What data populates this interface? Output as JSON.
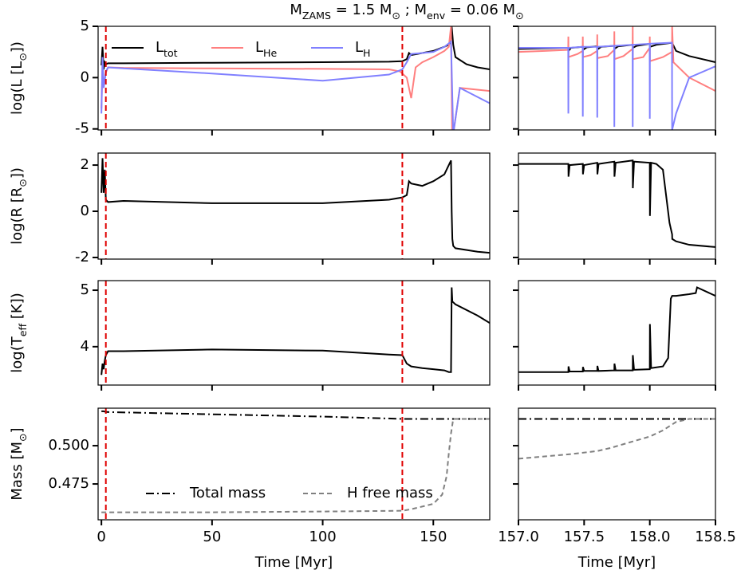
{
  "chart_data": [
    {
      "type": "line",
      "title": [
        "M",
        "ZAMS",
        " = 1.5 M",
        "⊙",
        " ; M",
        "env",
        " = 0.06 M",
        "⊙"
      ],
      "ylabel": [
        "log(L [L",
        "⊙",
        "])"
      ],
      "legend": "upper left",
      "xlim": [
        -1.5,
        175.5
      ],
      "ylim": [
        -5.1,
        5
      ],
      "xticks": [
        0,
        50,
        100,
        150
      ],
      "yticks": [
        -5,
        0,
        5
      ],
      "vlines": [
        2,
        136
      ],
      "vline_color": "#e00000",
      "series": [
        {
          "name": [
            "L",
            "tot"
          ],
          "color": "#000000",
          "linestyle": "solid",
          "x": [
            0,
            0.5,
            1,
            1.5,
            2,
            3,
            10,
            50,
            100,
            130,
            136,
            138,
            139,
            140,
            145,
            150,
            155,
            157,
            158,
            158.3,
            159,
            160,
            165,
            170,
            175.5
          ],
          "values": [
            1.2,
            3.0,
            0.8,
            1.5,
            1.3,
            1.4,
            1.4,
            1.45,
            1.5,
            1.55,
            1.6,
            1.8,
            2.4,
            2.2,
            2.4,
            2.6,
            3.0,
            3.2,
            3.6,
            5.0,
            3.2,
            2.0,
            1.3,
            1.0,
            0.8
          ]
        },
        {
          "name": [
            "L",
            "He"
          ],
          "color": "#ff7f7f",
          "linestyle": "solid",
          "x": [
            0,
            0.5,
            1,
            2,
            3,
            10,
            50,
            100,
            130,
            135,
            138,
            140,
            142,
            145,
            150,
            155,
            157,
            158,
            158.5,
            159,
            162,
            175.5
          ],
          "values": [
            -3,
            1.5,
            -1,
            0.5,
            1.0,
            0.95,
            0.9,
            0.85,
            0.8,
            0.6,
            0.0,
            -2.0,
            1.0,
            1.5,
            2.0,
            2.6,
            3.0,
            5.0,
            -5.5,
            -5.5,
            -1.0,
            -1.3
          ]
        },
        {
          "name": [
            "L",
            "H"
          ],
          "color": "#8080ff",
          "linestyle": "solid",
          "x": [
            0,
            0.5,
            1,
            2,
            3,
            10,
            50,
            100,
            130,
            136,
            138,
            140,
            145,
            150,
            155,
            158,
            159,
            162,
            175.5
          ],
          "values": [
            -3.5,
            2.0,
            -1,
            0.6,
            1.0,
            0.9,
            0.4,
            -0.3,
            0.3,
            0.8,
            1.5,
            2.3,
            2.4,
            2.5,
            3.0,
            3.5,
            -5.5,
            -1.0,
            -2.5
          ]
        }
      ]
    },
    {
      "type": "line",
      "xlim": [
        157,
        158.5
      ],
      "ylim": [
        -5.1,
        5
      ],
      "xticks": [
        157,
        157.5,
        158,
        158.5
      ],
      "yticks": [
        -5,
        0,
        5
      ],
      "series": [
        {
          "color": "#000000",
          "linestyle": "solid",
          "x": [
            157,
            157.38,
            157.381,
            157.4,
            157.49,
            157.491,
            157.52,
            157.6,
            157.601,
            157.63,
            157.73,
            157.731,
            157.76,
            157.87,
            157.871,
            157.9,
            158.0,
            158.001,
            158.05,
            158.17,
            158.2,
            158.3,
            158.5
          ],
          "values": [
            2.8,
            2.9,
            2.6,
            2.9,
            3.0,
            2.7,
            2.95,
            3.05,
            2.75,
            3.0,
            3.1,
            2.8,
            3.05,
            3.2,
            2.9,
            3.1,
            3.3,
            3.0,
            3.2,
            3.4,
            2.6,
            2.1,
            1.5
          ]
        },
        {
          "color": "#ff7f7f",
          "linestyle": "solid",
          "x": [
            157,
            157.2,
            157.379,
            157.38,
            157.381,
            157.45,
            157.489,
            157.49,
            157.491,
            157.55,
            157.599,
            157.6,
            157.601,
            157.68,
            157.729,
            157.73,
            157.731,
            157.8,
            157.869,
            157.87,
            157.871,
            157.95,
            157.999,
            158.0,
            158.001,
            158.1,
            158.169,
            158.17,
            158.18,
            158.3,
            158.5
          ],
          "values": [
            2.5,
            2.6,
            2.7,
            4.0,
            2.0,
            2.3,
            2.6,
            4.0,
            2.0,
            2.2,
            2.6,
            4.2,
            1.9,
            2.1,
            2.7,
            4.5,
            1.8,
            2.1,
            2.8,
            5.0,
            1.8,
            2.0,
            2.9,
            4.0,
            1.6,
            2.0,
            2.5,
            5.0,
            1.5,
            0.0,
            -1.3
          ]
        },
        {
          "color": "#8080ff",
          "linestyle": "solid",
          "x": [
            157,
            157.379,
            157.38,
            157.381,
            157.489,
            157.49,
            157.491,
            157.599,
            157.6,
            157.601,
            157.729,
            157.73,
            157.731,
            157.869,
            157.87,
            157.871,
            157.999,
            158.0,
            158.001,
            158.169,
            158.17,
            158.2,
            158.3,
            158.5
          ],
          "values": [
            2.9,
            2.9,
            -3.5,
            2.9,
            3.0,
            -3.8,
            3.0,
            3.0,
            -3.9,
            3.0,
            3.1,
            -4.8,
            3.1,
            3.2,
            -4.8,
            3.2,
            3.3,
            -4.0,
            3.3,
            3.4,
            -5.1,
            -3.5,
            0.0,
            1.1
          ]
        }
      ]
    },
    {
      "type": "line",
      "ylabel": [
        "log(R [R",
        "⊙",
        "])"
      ],
      "xlim": [
        -1.5,
        175.5
      ],
      "ylim": [
        -2.07,
        2.52
      ],
      "xticks": [
        0,
        50,
        100,
        150
      ],
      "yticks": [
        -2,
        0,
        2
      ],
      "vlines": [
        2,
        136
      ],
      "vline_color": "#e00000",
      "series": [
        {
          "color": "#000000",
          "linestyle": "solid",
          "x": [
            0,
            0.5,
            1,
            1.5,
            2,
            3,
            10,
            50,
            100,
            130,
            136,
            138,
            139,
            140,
            145,
            150,
            155,
            157,
            158,
            158.3,
            158.6,
            159,
            160,
            170,
            175.5
          ],
          "values": [
            0.8,
            2.3,
            0.8,
            1.8,
            0.5,
            0.4,
            0.45,
            0.35,
            0.35,
            0.5,
            0.6,
            0.7,
            1.3,
            1.2,
            1.1,
            1.3,
            1.6,
            2.0,
            2.2,
            0.0,
            -1.2,
            -1.5,
            -1.6,
            -1.75,
            -1.8
          ]
        }
      ]
    },
    {
      "type": "line",
      "xlim": [
        157,
        158.5
      ],
      "ylim": [
        -2.07,
        2.52
      ],
      "xticks": [
        157,
        157.5,
        158,
        158.5
      ],
      "yticks": [
        -2,
        0,
        2
      ],
      "series": [
        {
          "color": "#000000",
          "linestyle": "solid",
          "x": [
            157,
            157.38,
            157.381,
            157.39,
            157.49,
            157.491,
            157.5,
            157.6,
            157.601,
            157.61,
            157.73,
            157.731,
            157.74,
            157.87,
            157.871,
            157.88,
            158.0,
            158.001,
            158.01,
            158.05,
            158.1,
            158.15,
            158.17,
            158.171,
            158.2,
            158.3,
            158.5
          ],
          "values": [
            2.05,
            2.05,
            1.5,
            2.0,
            2.05,
            1.6,
            2.0,
            2.1,
            1.6,
            2.05,
            2.15,
            1.5,
            2.1,
            2.2,
            1.0,
            2.15,
            2.1,
            -0.2,
            2.1,
            2.05,
            1.8,
            -0.5,
            -1.0,
            -1.2,
            -1.3,
            -1.45,
            -1.55
          ]
        }
      ]
    },
    {
      "type": "line",
      "ylabel": [
        "log(T",
        "eff",
        " [K])"
      ],
      "xlim": [
        -1.5,
        175.5
      ],
      "ylim": [
        3.32,
        5.17
      ],
      "xticks": [
        0,
        50,
        100,
        150
      ],
      "yticks": [
        4,
        5
      ],
      "vlines": [
        2,
        136
      ],
      "vline_color": "#e00000",
      "series": [
        {
          "color": "#000000",
          "linestyle": "solid",
          "x": [
            0,
            0.5,
            1,
            1.5,
            2,
            3,
            10,
            50,
            100,
            130,
            136,
            138,
            140,
            145,
            150,
            155,
            157,
            158,
            158.3,
            158.6,
            160,
            170,
            175.5
          ],
          "values": [
            3.5,
            3.7,
            3.6,
            3.75,
            3.85,
            3.92,
            3.92,
            3.95,
            3.93,
            3.86,
            3.85,
            3.7,
            3.65,
            3.62,
            3.6,
            3.58,
            3.55,
            3.55,
            5.05,
            4.8,
            4.75,
            4.55,
            4.42
          ]
        }
      ]
    },
    {
      "type": "line",
      "xlim": [
        157,
        158.5
      ],
      "ylim": [
        3.32,
        5.17
      ],
      "xticks": [
        157,
        157.5,
        158,
        158.5
      ],
      "yticks": [
        4,
        5
      ],
      "series": [
        {
          "color": "#000000",
          "linestyle": "solid",
          "x": [
            157,
            157.38,
            157.381,
            157.39,
            157.49,
            157.491,
            157.5,
            157.6,
            157.601,
            157.61,
            157.73,
            157.731,
            157.74,
            157.87,
            157.871,
            157.88,
            158.0,
            158.001,
            158.01,
            158.1,
            158.14,
            158.16,
            158.17,
            158.2,
            158.3,
            158.35,
            158.36,
            158.5
          ],
          "values": [
            3.55,
            3.55,
            3.65,
            3.56,
            3.56,
            3.64,
            3.57,
            3.57,
            3.66,
            3.57,
            3.58,
            3.7,
            3.58,
            3.58,
            3.85,
            3.59,
            3.6,
            4.4,
            3.62,
            3.65,
            3.8,
            4.85,
            4.9,
            4.9,
            4.93,
            4.95,
            5.05,
            4.9
          ]
        }
      ]
    },
    {
      "type": "line",
      "ylabel": [
        "Mass [M",
        "⊙",
        "]"
      ],
      "xlabel": "Time [Myr]",
      "legend": "lower left",
      "xlim": [
        -1.5,
        175.5
      ],
      "ylim": [
        0.4516,
        0.5245
      ],
      "xticks": [
        0,
        50,
        100,
        150
      ],
      "yticks": [
        0.475,
        {
          "value": 0.5,
          "label": "0.500"
        }
      ],
      "vlines": [
        2,
        136
      ],
      "vline_color": "#e00000",
      "series": [
        {
          "name": [
            "Total mass"
          ],
          "color": "#000000",
          "linestyle": "dashdot",
          "x": [
            0,
            1,
            2,
            50,
            100,
            136,
            160,
            175.5
          ],
          "values": [
            0.5225,
            0.5225,
            0.522,
            0.5205,
            0.519,
            0.5175,
            0.5175,
            0.5175
          ]
        },
        {
          "name": [
            "H free mass"
          ],
          "color": "#808080",
          "linestyle": "dashed",
          "x": [
            0,
            50,
            100,
            136,
            140,
            150,
            154,
            156,
            157,
            158,
            159,
            175.5
          ],
          "values": [
            0.4565,
            0.4565,
            0.457,
            0.4575,
            0.4585,
            0.462,
            0.468,
            0.48,
            0.495,
            0.508,
            0.5175,
            0.5175
          ]
        }
      ]
    },
    {
      "type": "line",
      "xlabel": "Time [Myr]",
      "xlim": [
        157,
        158.5
      ],
      "ylim": [
        0.4516,
        0.5245
      ],
      "xticks": [
        {
          "value": 157,
          "label": "157.0"
        },
        157.5,
        {
          "value": 158,
          "label": "158.0"
        },
        158.5
      ],
      "yticks": [
        0.475,
        0.5
      ],
      "series": [
        {
          "color": "#000000",
          "linestyle": "dashdot",
          "x": [
            157,
            158.5
          ],
          "values": [
            0.5175,
            0.5175
          ]
        },
        {
          "color": "#808080",
          "linestyle": "dashed",
          "x": [
            157,
            157.4,
            157.6,
            157.7,
            157.8,
            157.9,
            158.0,
            158.1,
            158.2,
            158.3,
            158.5
          ],
          "values": [
            0.4915,
            0.4945,
            0.4965,
            0.4985,
            0.501,
            0.5035,
            0.506,
            0.51,
            0.5155,
            0.5175,
            0.5175
          ]
        }
      ]
    }
  ]
}
